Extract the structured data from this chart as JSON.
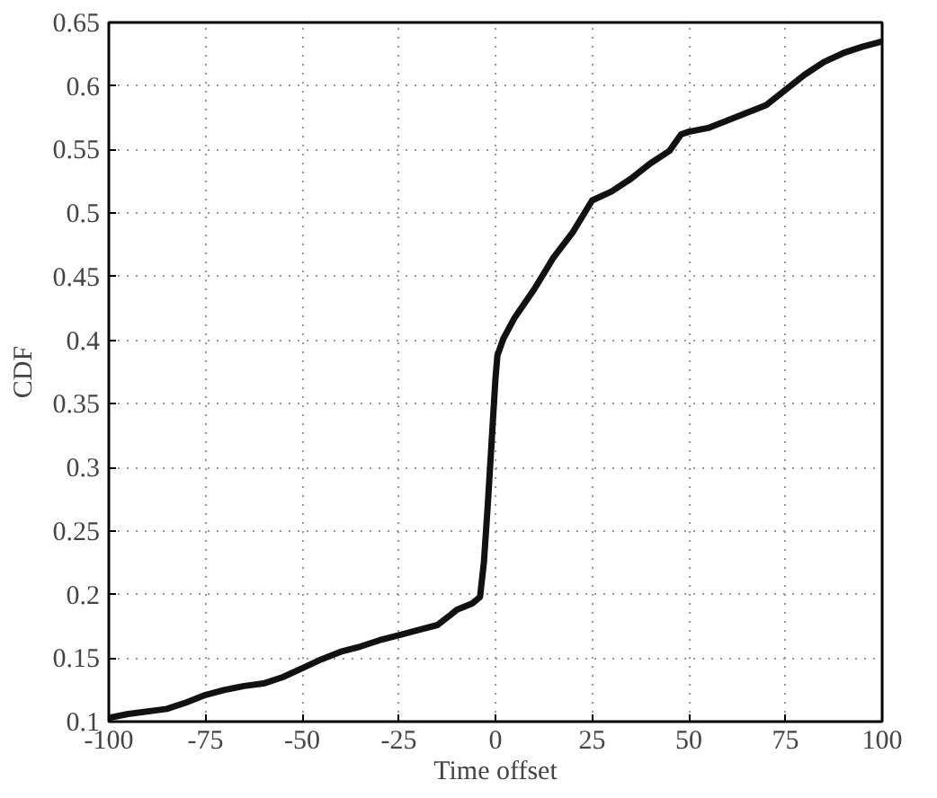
{
  "chart_data": {
    "type": "line",
    "xlabel": "Time offset",
    "ylabel": "CDF",
    "xlim": [
      -100,
      100
    ],
    "ylim": [
      0.1,
      0.65
    ],
    "xticks": [
      -100,
      -75,
      -50,
      -25,
      0,
      25,
      50,
      75,
      100
    ],
    "yticks": [
      0.1,
      0.15,
      0.2,
      0.25,
      0.3,
      0.35,
      0.4,
      0.45,
      0.5,
      0.55,
      0.6,
      0.65
    ],
    "grid": true,
    "line_style": "solid",
    "series": [
      {
        "color": "#111111",
        "x": [
          -100,
          -95,
          -85,
          -80,
          -75,
          -70,
          -65,
          -60,
          -55,
          -50,
          -45,
          -40,
          -35,
          -30,
          -25,
          -20,
          -15,
          -12,
          -10,
          -6,
          -4,
          -3,
          -2,
          -1,
          0,
          0.5,
          2,
          5,
          10,
          15,
          20,
          25,
          30,
          35,
          40,
          45,
          48,
          50,
          55,
          60,
          65,
          70,
          75,
          80,
          85,
          90,
          95,
          100
        ],
        "values": [
          0.103,
          0.106,
          0.11,
          0.115,
          0.121,
          0.125,
          0.128,
          0.13,
          0.135,
          0.142,
          0.149,
          0.155,
          0.159,
          0.164,
          0.168,
          0.172,
          0.176,
          0.183,
          0.188,
          0.193,
          0.198,
          0.225,
          0.27,
          0.32,
          0.37,
          0.388,
          0.401,
          0.418,
          0.44,
          0.465,
          0.485,
          0.51,
          0.517,
          0.527,
          0.539,
          0.549,
          0.562,
          0.564,
          0.567,
          0.573,
          0.579,
          0.585,
          0.597,
          0.609,
          0.619,
          0.626,
          0.631,
          0.635
        ]
      }
    ]
  }
}
